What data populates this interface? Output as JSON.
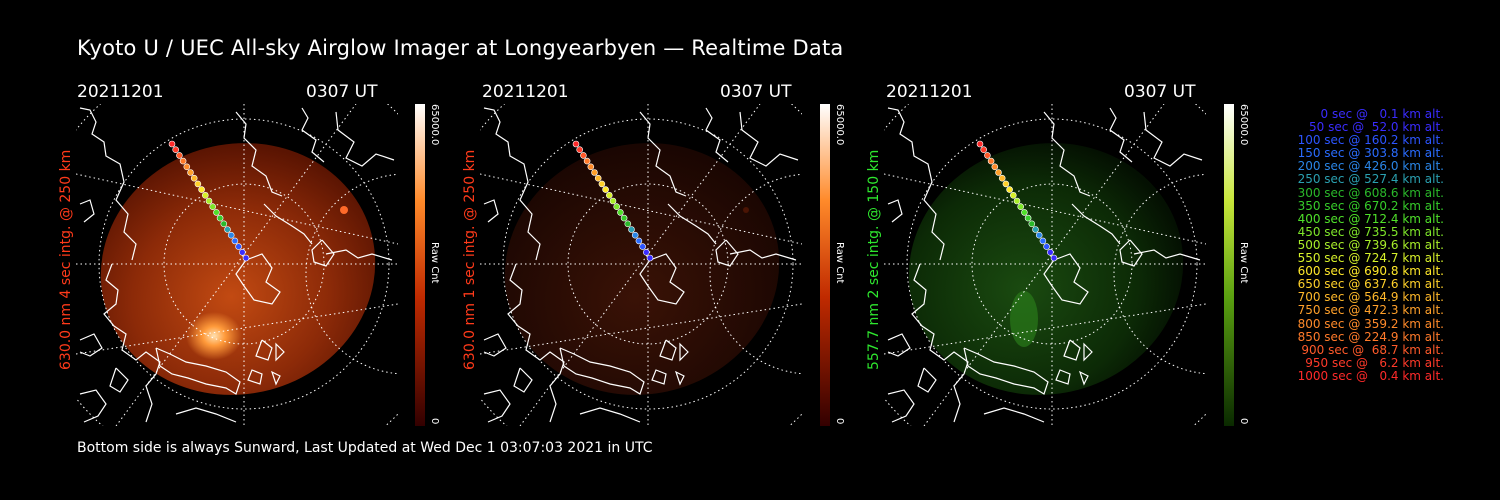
{
  "title": "Kyoto U / UEC All-sky Airglow Imager at Longyearbyen — Realtime Data",
  "footer": "Bottom side is always Sunward, Last Updated at Wed Dec  1 03:07:03 2021 in UTC",
  "panels": [
    {
      "date": "20211201",
      "time": "0307 UT",
      "side_label": "630.0 nm 4 sec intg. @ 250 km",
      "label_color": "#ff3a1a",
      "cbar_max": "65000.0",
      "cbar_unit": "Raw Cnt",
      "cbar_min": "0",
      "glow": "red-bright"
    },
    {
      "date": "20211201",
      "time": "0307 UT",
      "side_label": "630.0 nm 1 sec intg. @ 250 km",
      "label_color": "#ff3a1a",
      "cbar_max": "65000.0",
      "cbar_unit": "Raw Cnt",
      "cbar_min": "0",
      "glow": "red-dim"
    },
    {
      "date": "20211201",
      "time": "0307 UT",
      "side_label": "557.7 nm 2 sec intg. @ 150 km",
      "label_color": "#2ee62e",
      "cbar_max": "65000.0",
      "cbar_unit": "Raw Cnt",
      "cbar_min": "0",
      "glow": "green"
    }
  ],
  "legend": [
    {
      "text": "0 sec @   0.1 km alt.",
      "color": "#3a2cff"
    },
    {
      "text": "50 sec @  52.0 km alt.",
      "color": "#3a2cff"
    },
    {
      "text": "100 sec @ 160.2 km alt.",
      "color": "#2c55ff"
    },
    {
      "text": "150 sec @ 303.8 km alt.",
      "color": "#2a6cff"
    },
    {
      "text": "200 sec @ 426.0 km alt.",
      "color": "#2a85e6"
    },
    {
      "text": "250 sec @ 527.4 km alt.",
      "color": "#2aa0b0"
    },
    {
      "text": "300 sec @ 608.6 km alt.",
      "color": "#2ab82a"
    },
    {
      "text": "350 sec @ 670.2 km alt.",
      "color": "#36cc2a"
    },
    {
      "text": "400 sec @ 712.4 km alt.",
      "color": "#4fe02a"
    },
    {
      "text": "450 sec @ 735.5 km alt.",
      "color": "#7ee62a"
    },
    {
      "text": "500 sec @ 739.6 km alt.",
      "color": "#a8ee2a"
    },
    {
      "text": "550 sec @ 724.7 km alt.",
      "color": "#d6f02a"
    },
    {
      "text": "600 sec @ 690.8 km alt.",
      "color": "#ffe82a"
    },
    {
      "text": "650 sec @ 637.6 km alt.",
      "color": "#ffd02a"
    },
    {
      "text": "700 sec @ 564.9 km alt.",
      "color": "#ffb82a"
    },
    {
      "text": "750 sec @ 472.3 km alt.",
      "color": "#ffa02a"
    },
    {
      "text": "800 sec @ 359.2 km alt.",
      "color": "#ff8a2a"
    },
    {
      "text": "850 sec @ 224.9 km alt.",
      "color": "#ff7a2a"
    },
    {
      "text": "900 sec @  68.7 km alt.",
      "color": "#ff5a2a"
    },
    {
      "text": "950 sec @   6.2 km alt.",
      "color": "#ff3a2a"
    },
    {
      "text": "1000 sec @   0.4 km alt.",
      "color": "#ff2a2a"
    }
  ]
}
